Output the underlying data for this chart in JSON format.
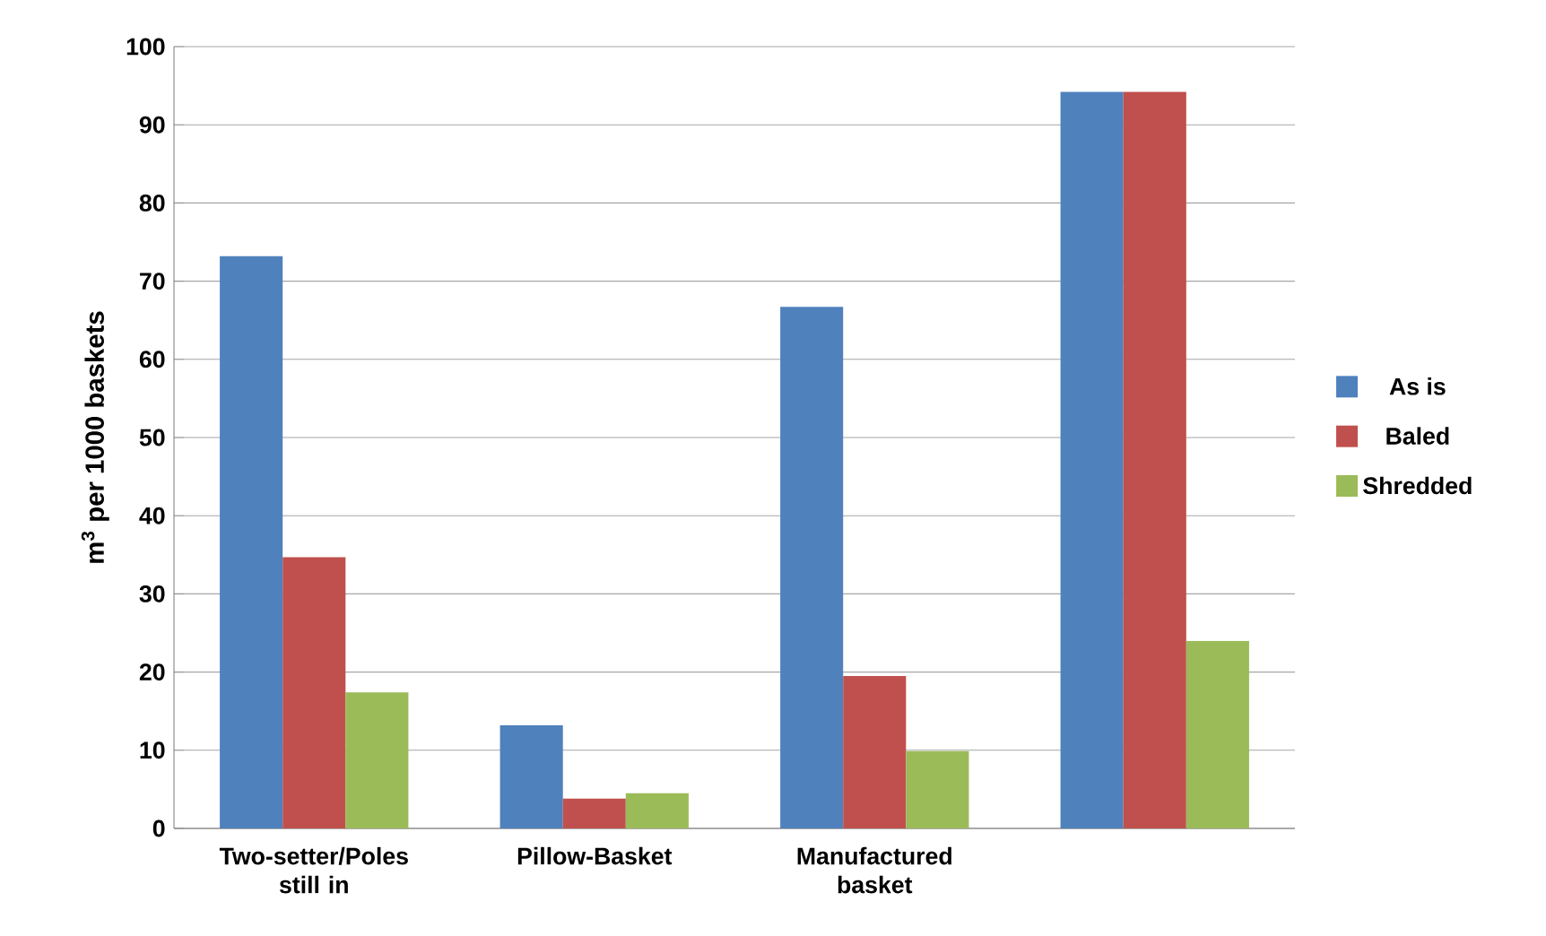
{
  "chart_data": {
    "type": "bar",
    "ylabel": "m$^{3}$ per 1000 baskets",
    "categories": [
      "Two-setter/Poles still in",
      "Pillow-Basket",
      "Manufactured basket",
      null
    ],
    "series": [
      {
        "name": "As is",
        "color": "#4f81bd",
        "values": [
          73.2,
          13.2,
          66.7,
          94.2
        ]
      },
      {
        "name": "Baled",
        "color": "#c0504d",
        "values": [
          34.7,
          3.8,
          19.5,
          94.2
        ]
      },
      {
        "name": "Shredded",
        "color": "#9bbb59",
        "values": [
          17.4,
          4.5,
          9.9,
          24.0
        ]
      }
    ],
    "ylim": [
      0,
      100
    ],
    "yticks": [
      0,
      10,
      20,
      30,
      40,
      50,
      60,
      70,
      80,
      90,
      100
    ],
    "grid": "y",
    "legend": "right"
  }
}
